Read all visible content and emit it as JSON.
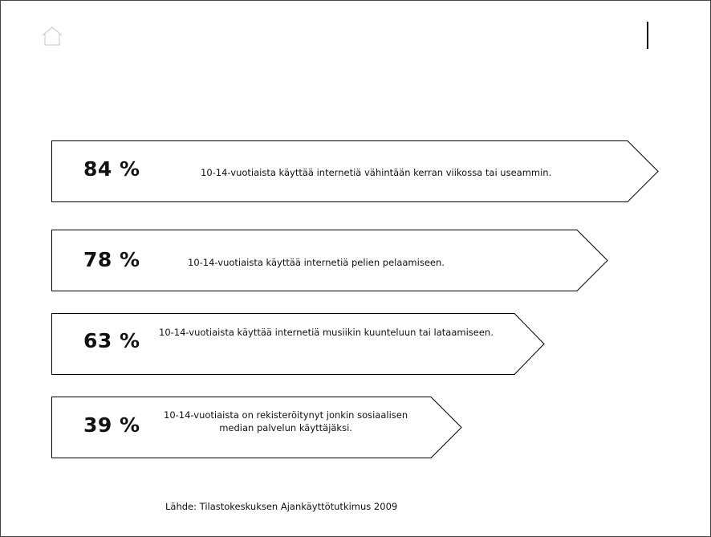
{
  "stats": [
    {
      "value": "84 %",
      "text_lines": [
        "10-14-vuotiaista käyttää internetiä vähintään kerran viikossa tai useammin."
      ]
    },
    {
      "value": "78 %",
      "text_lines": [
        "10-14-vuotiaista käyttää internetiä pelien pelaamiseen."
      ]
    },
    {
      "value": "63 %",
      "text_lines": [
        "10-14-vuotiaista käyttää internetiä musiikin kuunteluun tai lataamiseen."
      ]
    },
    {
      "value": "39 %",
      "text_lines": [
        "10-14-vuotiaista on rekisteröitynyt jonkin sosiaalisen",
        "median palvelun käyttäjäksi."
      ]
    }
  ],
  "source": "Lähde: Tilastokeskuksen Ajankäyttötutkimus 2009",
  "icons": {
    "home": "home-icon"
  },
  "colors": {
    "stroke": "#000000",
    "background": "#ffffff"
  }
}
